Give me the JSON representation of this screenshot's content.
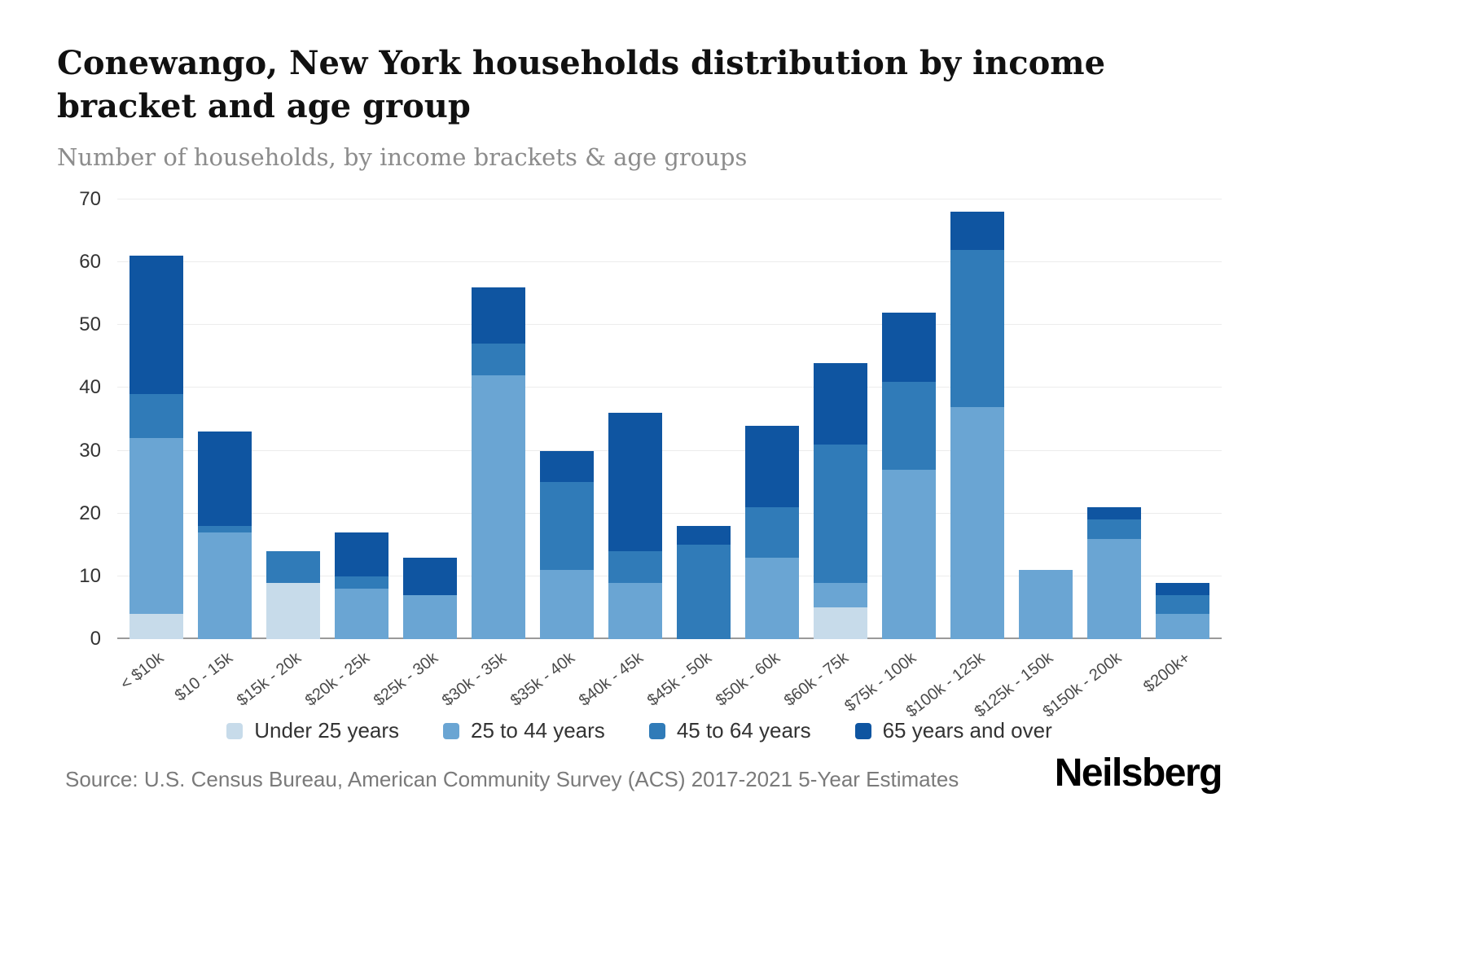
{
  "header": {
    "title": "Conewango, New York households distribution by income bracket and age group",
    "subtitle": "Number of households, by income brackets & age groups"
  },
  "chart_data": {
    "type": "bar",
    "stacked": true,
    "title": "Conewango, New York households distribution by income bracket and age group",
    "subtitle": "Number of households, by income brackets & age groups",
    "categories": [
      "< $10k",
      "$10 - 15k",
      "$15k - 20k",
      "$20k - 25k",
      "$25k - 30k",
      "$30k - 35k",
      "$35k - 40k",
      "$40k - 45k",
      "$45k - 50k",
      "$50k - 60k",
      "$60k - 75k",
      "$75k - 100k",
      "$100k - 125k",
      "$125k - 150k",
      "$150k - 200k",
      "$200k+"
    ],
    "series": [
      {
        "name": "Under 25 years",
        "color": "#c7dbea",
        "values": [
          4,
          0,
          9,
          0,
          0,
          0,
          0,
          0,
          0,
          0,
          5,
          0,
          0,
          0,
          0,
          0
        ]
      },
      {
        "name": "25 to 44 years",
        "color": "#6aa5d3",
        "values": [
          28,
          17,
          0,
          8,
          7,
          42,
          11,
          9,
          0,
          13,
          4,
          27,
          37,
          11,
          16,
          4
        ]
      },
      {
        "name": "45 to 64 years",
        "color": "#307bb8",
        "values": [
          7,
          1,
          5,
          2,
          0,
          5,
          14,
          5,
          15,
          8,
          22,
          14,
          25,
          0,
          3,
          3
        ]
      },
      {
        "name": "65 years and over",
        "color": "#0f55a1",
        "values": [
          22,
          15,
          0,
          7,
          6,
          9,
          5,
          22,
          3,
          13,
          13,
          11,
          6,
          0,
          2,
          2
        ]
      }
    ],
    "totals": [
      61,
      33,
      14,
      17,
      13,
      56,
      30,
      36,
      18,
      34,
      44,
      52,
      68,
      11,
      21,
      9
    ],
    "ylabel": "",
    "xlabel": "",
    "ylim": [
      0,
      70
    ],
    "yticks": [
      0,
      10,
      20,
      30,
      40,
      50,
      60,
      70
    ],
    "grid": "horizontal",
    "legend_position": "bottom"
  },
  "footer": {
    "source": "Source: U.S. Census Bureau, American Community Survey (ACS) 2017-2021 5-Year Estimates",
    "brand": "Neilsberg"
  }
}
